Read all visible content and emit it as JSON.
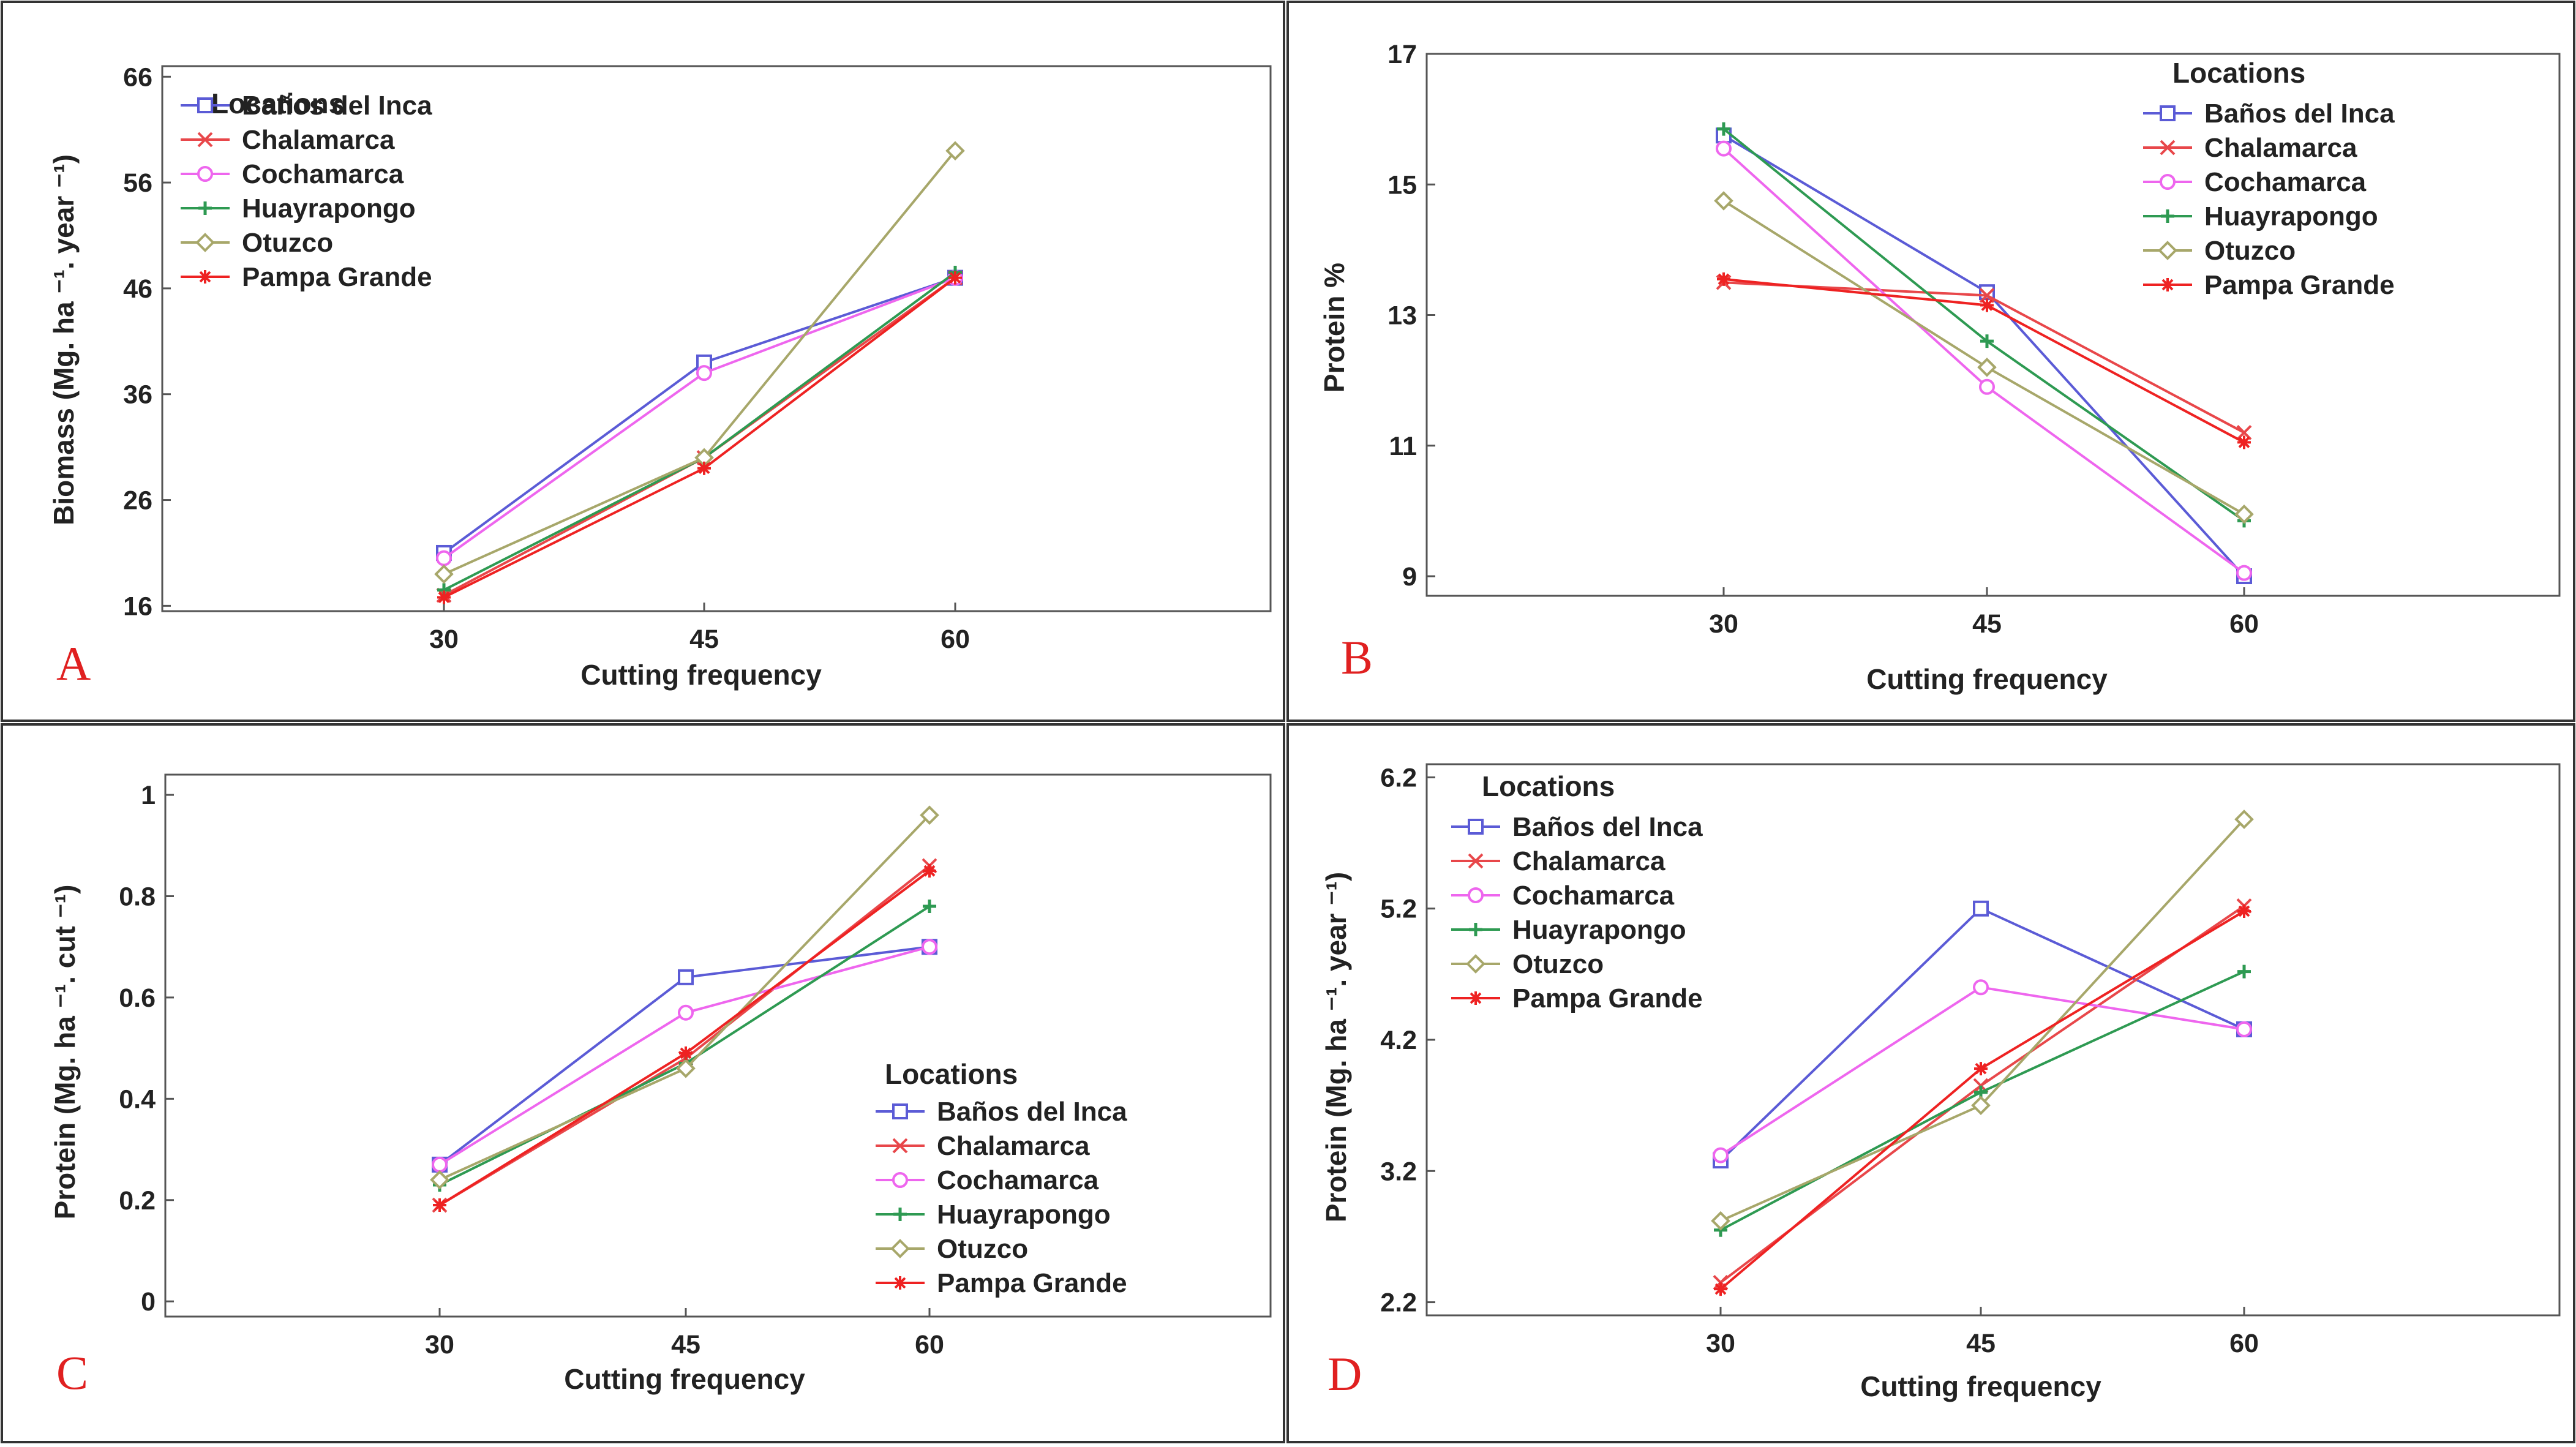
{
  "chart_data": [
    {
      "type": "line",
      "panel_label": "A",
      "title": "",
      "xlabel": "Cutting frequency",
      "ylabel": "Biomass  (Mg. ha ⁻¹. year ⁻¹)",
      "x": [
        30,
        45,
        60
      ],
      "xticks": [
        "30",
        "45",
        "60"
      ],
      "yticks": [
        "16",
        "26",
        "36",
        "46",
        "56",
        "66"
      ],
      "ylim": [
        15.5,
        67
      ],
      "legend_title": "Locations",
      "legend_position": "top-left",
      "series": [
        {
          "name": "Baños del Inca",
          "color": "#5b5bd6",
          "marker": "square",
          "values": [
            21,
            39,
            47
          ]
        },
        {
          "name": "Chalamarca",
          "color": "#e8474a",
          "marker": "x",
          "values": [
            17,
            30,
            47
          ]
        },
        {
          "name": "Cochamarca",
          "color": "#ee66ee",
          "marker": "circle",
          "values": [
            20.5,
            38,
            47
          ]
        },
        {
          "name": "Huayrapongo",
          "color": "#2e9a52",
          "marker": "plus",
          "values": [
            17.5,
            30,
            47.5
          ]
        },
        {
          "name": "Otuzco",
          "color": "#a7a76a",
          "marker": "diamond",
          "values": [
            19,
            30,
            59
          ]
        },
        {
          "name": "Pampa Grande",
          "color": "#ee2222",
          "marker": "star",
          "values": [
            16.8,
            29,
            47
          ]
        }
      ]
    },
    {
      "type": "line",
      "panel_label": "B",
      "title": "",
      "xlabel": "Cutting frequency",
      "ylabel": "Protein %",
      "x": [
        30,
        45,
        60
      ],
      "xticks": [
        "30",
        "45",
        "60"
      ],
      "yticks": [
        "9",
        "11",
        "13",
        "15",
        "17"
      ],
      "ylim": [
        8.7,
        17
      ],
      "legend_title": "Locations",
      "legend_position": "top-right",
      "series": [
        {
          "name": "Baños del Inca",
          "color": "#5b5bd6",
          "marker": "square",
          "values": [
            15.75,
            13.35,
            9.0
          ]
        },
        {
          "name": "Chalamarca",
          "color": "#e8474a",
          "marker": "x",
          "values": [
            13.5,
            13.3,
            11.2
          ]
        },
        {
          "name": "Cochamarca",
          "color": "#ee66ee",
          "marker": "circle",
          "values": [
            15.55,
            11.9,
            9.05
          ]
        },
        {
          "name": "Huayrapongo",
          "color": "#2e9a52",
          "marker": "plus",
          "values": [
            15.85,
            12.6,
            9.85
          ]
        },
        {
          "name": "Otuzco",
          "color": "#a7a76a",
          "marker": "diamond",
          "values": [
            14.75,
            12.2,
            9.95
          ]
        },
        {
          "name": "Pampa Grande",
          "color": "#ee2222",
          "marker": "star",
          "values": [
            13.55,
            13.15,
            11.05
          ]
        }
      ]
    },
    {
      "type": "line",
      "panel_label": "C",
      "title": "",
      "xlabel": "Cutting frequency",
      "ylabel": "Protein  (Mg. ha ⁻¹. cut ⁻¹)",
      "x": [
        30,
        45,
        60
      ],
      "xticks": [
        "30",
        "45",
        "60"
      ],
      "yticks": [
        "0",
        "0.2",
        "0.4",
        "0.6",
        "0.8",
        "1"
      ],
      "ylim": [
        -0.03,
        1.04
      ],
      "legend_title": "Locations",
      "legend_position": "bottom-right",
      "series": [
        {
          "name": "Baños del Inca",
          "color": "#5b5bd6",
          "marker": "square",
          "values": [
            0.27,
            0.64,
            0.7
          ]
        },
        {
          "name": "Chalamarca",
          "color": "#e8474a",
          "marker": "x",
          "values": [
            0.19,
            0.48,
            0.86
          ]
        },
        {
          "name": "Cochamarca",
          "color": "#ee66ee",
          "marker": "circle",
          "values": [
            0.27,
            0.57,
            0.7
          ]
        },
        {
          "name": "Huayrapongo",
          "color": "#2e9a52",
          "marker": "plus",
          "values": [
            0.23,
            0.47,
            0.78
          ]
        },
        {
          "name": "Otuzco",
          "color": "#a7a76a",
          "marker": "diamond",
          "values": [
            0.24,
            0.46,
            0.96
          ]
        },
        {
          "name": "Pampa Grande",
          "color": "#ee2222",
          "marker": "star",
          "values": [
            0.19,
            0.49,
            0.85
          ]
        }
      ]
    },
    {
      "type": "line",
      "panel_label": "D",
      "title": "",
      "xlabel": "Cutting frequency",
      "ylabel": "Protein  (Mg. ha ⁻¹. year ⁻¹)",
      "x": [
        30,
        45,
        60
      ],
      "xticks": [
        "30",
        "45",
        "60"
      ],
      "yticks": [
        "2.2",
        "3.2",
        "4.2",
        "5.2",
        "6.2"
      ],
      "ylim": [
        2.1,
        6.3
      ],
      "legend_title": "Locations",
      "legend_position": "top-left",
      "series": [
        {
          "name": "Baños del Inca",
          "color": "#5b5bd6",
          "marker": "square",
          "values": [
            3.28,
            5.2,
            4.28
          ]
        },
        {
          "name": "Chalamarca",
          "color": "#e8474a",
          "marker": "x",
          "values": [
            2.35,
            3.85,
            5.22
          ]
        },
        {
          "name": "Cochamarca",
          "color": "#ee66ee",
          "marker": "circle",
          "values": [
            3.32,
            4.6,
            4.28
          ]
        },
        {
          "name": "Huayrapongo",
          "color": "#2e9a52",
          "marker": "plus",
          "values": [
            2.75,
            3.8,
            4.72
          ]
        },
        {
          "name": "Otuzco",
          "color": "#a7a76a",
          "marker": "diamond",
          "values": [
            2.82,
            3.7,
            5.88
          ]
        },
        {
          "name": "Pampa Grande",
          "color": "#ee2222",
          "marker": "star",
          "values": [
            2.3,
            3.98,
            5.18
          ]
        }
      ]
    }
  ]
}
